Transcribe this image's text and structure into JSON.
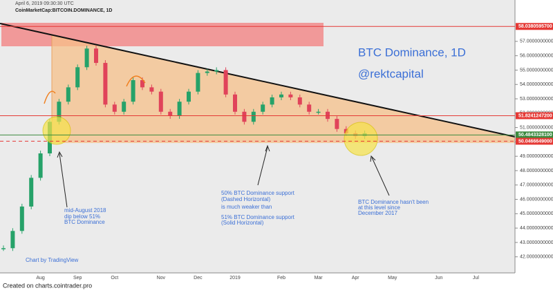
{
  "chart_data": {
    "type": "candle-line",
    "timestamp": "April 6, 2019 09:30:30 UTC",
    "symbol": "CoinMarketCap:BITCOIN.DOMINANCE, 1D",
    "title": "BTC Dominance, 1D",
    "subtitle": "@rektcapital",
    "credit": "Chart by TradingView",
    "footer": "Created on charts.cointrader.pro",
    "annotations": [
      "mid-August 2018",
      "dip below 51%",
      "BTC Dominance",
      "50% BTC Dominance support",
      "(Dashed Horizontal)",
      "is much weaker than",
      "51% BTC Dominance support",
      "(Solid Horizontal)",
      "BTC Dominance hasn't been",
      "at this level since",
      "December 2017"
    ],
    "categories": [
      null,
      null,
      null,
      null,
      "Aug",
      null,
      null,
      null,
      "Sep",
      null,
      null,
      null,
      "Oct",
      null,
      null,
      null,
      null,
      "Nov",
      null,
      null,
      null,
      "Dec",
      null,
      null,
      null,
      "2019",
      null,
      null,
      null,
      null,
      "Feb",
      null,
      null,
      null,
      "Mar",
      null,
      null,
      null,
      "Apr",
      null,
      null,
      null,
      "May",
      null,
      null,
      null,
      null,
      "Jun",
      null,
      null,
      null,
      "Jul",
      null,
      null,
      null,
      null
    ],
    "series": [
      {
        "name": "BITCOIN.DOMINANCE",
        "up_color": "#26a269",
        "down_color": "#e0435a",
        "values": [
          42.6,
          43.8,
          45.5,
          47.5,
          49.2,
          51.4,
          52.8,
          53.8,
          55.2,
          56.5,
          55.5,
          52.6,
          52.1,
          52.8,
          54.3,
          53.8,
          53.5,
          52.1,
          51.8,
          52.8,
          53.5,
          54.8,
          54.9,
          55.0,
          53.3,
          52.1,
          51.4,
          52.1,
          52.6,
          53.1,
          53.3,
          53.1,
          52.6,
          52.1,
          52.1,
          51.6,
          50.9,
          50.6,
          50.4,
          50.6,
          null,
          null,
          null,
          null,
          null,
          null,
          null,
          null,
          null,
          null,
          null,
          null,
          null,
          null,
          null,
          null
        ]
      }
    ],
    "ylim": [
      40.88,
      59.88
    ],
    "yticks": [
      {
        "value": 42,
        "label": "42.0000000000"
      },
      {
        "value": 43,
        "label": "43.0000000000"
      },
      {
        "value": 44,
        "label": "44.0000000000"
      },
      {
        "value": 45,
        "label": "45.0000000000"
      },
      {
        "value": 46,
        "label": "46.0000000000"
      },
      {
        "value": 47,
        "label": "47.0000000000"
      },
      {
        "value": 48,
        "label": "48.0000000000"
      },
      {
        "value": 49,
        "label": "49.0000000000"
      },
      {
        "value": 50,
        "label": "50.0000000000"
      },
      {
        "value": 51,
        "label": "51.0000000000"
      },
      {
        "value": 52,
        "label": "52.0000000000"
      },
      {
        "value": 53,
        "label": "53.0000000000"
      },
      {
        "value": 54,
        "label": "54.0000000000"
      },
      {
        "value": 55,
        "label": "55.0000000000"
      },
      {
        "value": 56,
        "label": "56.0000000000"
      },
      {
        "value": 57,
        "label": "57.0000000000"
      }
    ],
    "levels": [
      {
        "value": 58.03805957,
        "label": "58.0380595700",
        "color": "#e53935",
        "dashed": false
      },
      {
        "value": 51.82412472,
        "label": "51.8241247200",
        "color": "#e53935",
        "dashed": false
      },
      {
        "value": 50.48433281,
        "label": "50.4843328100",
        "color": "#3b8a3e",
        "dashed": false
      },
      {
        "value": 50.0466649,
        "label": "50.0466649000",
        "color": "#e53935",
        "dashed": true
      }
    ]
  }
}
